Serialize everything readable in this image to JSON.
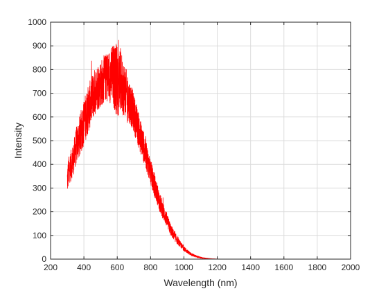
{
  "chart_data": {
    "type": "line",
    "title": "",
    "xlabel": "Wavelength (nm)",
    "ylabel": "Intensity",
    "xlim": [
      200,
      2000
    ],
    "ylim": [
      0,
      1000
    ],
    "xticks": [
      200,
      400,
      600,
      800,
      1000,
      1200,
      1400,
      1600,
      1800,
      2000
    ],
    "yticks": [
      0,
      100,
      200,
      300,
      400,
      500,
      600,
      700,
      800,
      900,
      1000
    ],
    "grid": true,
    "legend": "none",
    "series": [
      {
        "color": "#ff0000",
        "x": [
          300,
          310,
          320,
          330,
          340,
          350,
          360,
          370,
          380,
          390,
          400,
          410,
          420,
          430,
          440,
          450,
          460,
          470,
          480,
          490,
          500,
          510,
          520,
          530,
          540,
          550,
          560,
          570,
          580,
          590,
          600,
          610,
          620,
          630,
          640,
          650,
          660,
          670,
          680,
          690,
          700,
          710,
          720,
          730,
          740,
          750,
          760,
          770,
          780,
          790,
          800,
          820,
          840,
          860,
          880,
          900,
          920,
          940,
          960,
          980,
          1000,
          1020,
          1040,
          1060,
          1080,
          1100,
          1120,
          1140,
          1160,
          1180,
          1200,
          1225,
          1250,
          1275,
          1300,
          1350,
          1400,
          1500,
          1600,
          1700,
          1800,
          1900,
          2000
        ],
        "values": [
          330,
          380,
          390,
          410,
          430,
          470,
          490,
          510,
          530,
          555,
          580,
          600,
          620,
          640,
          660,
          680,
          700,
          710,
          725,
          735,
          740,
          750,
          760,
          765,
          770,
          775,
          775,
          775,
          770,
          765,
          760,
          755,
          750,
          735,
          720,
          705,
          690,
          670,
          655,
          635,
          615,
          590,
          565,
          540,
          515,
          495,
          470,
          445,
          420,
          395,
          370,
          320,
          275,
          230,
          195,
          160,
          125,
          100,
          80,
          60,
          45,
          32,
          22,
          15,
          10,
          6,
          4,
          2.5,
          1.5,
          1,
          0.5,
          0.3,
          0.2,
          0.1,
          0,
          0,
          0,
          0,
          0,
          0,
          0,
          0,
          0
        ],
        "noise_amplitude": [
          60,
          60,
          65,
          65,
          70,
          75,
          80,
          85,
          90,
          95,
          100,
          100,
          100,
          100,
          100,
          100,
          100,
          100,
          100,
          100,
          100,
          100,
          100,
          100,
          105,
          110,
          120,
          130,
          140,
          150,
          160,
          150,
          140,
          125,
          115,
          105,
          100,
          95,
          90,
          85,
          80,
          80,
          75,
          75,
          70,
          70,
          65,
          60,
          60,
          55,
          55,
          50,
          45,
          40,
          35,
          30,
          25,
          20,
          17,
          13,
          10,
          8,
          6,
          5,
          4,
          3,
          2,
          1.5,
          1,
          0.5,
          0.3,
          0,
          0,
          0,
          0,
          0,
          0,
          0,
          0,
          0,
          0,
          0,
          0
        ]
      }
    ]
  }
}
